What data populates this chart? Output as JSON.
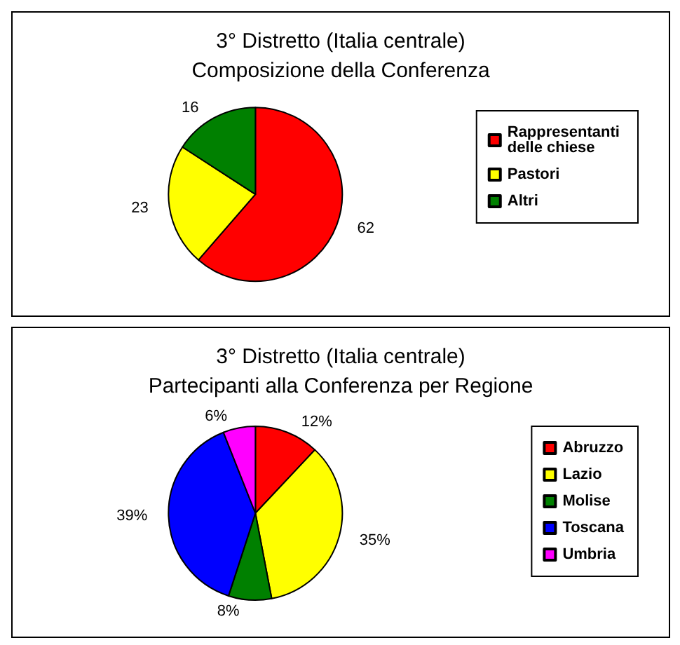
{
  "chart_data": [
    {
      "type": "pie",
      "title": "3° Distretto (Italia centrale)",
      "subtitle": "Composizione della Conferenza",
      "categories": [
        "Rappresentanti delle chiese",
        "Pastori",
        "Altri"
      ],
      "values": [
        62,
        23,
        16
      ],
      "colors": [
        "#ff0000",
        "#ffff00",
        "#008000"
      ],
      "data_labels": true,
      "legend": "right"
    },
    {
      "type": "pie",
      "title": "3° Distretto (Italia centrale)",
      "subtitle": "Partecipanti alla Conferenza per Regione",
      "categories": [
        "Abruzzo",
        "Lazio",
        "Molise",
        "Toscana",
        "Umbria"
      ],
      "values": [
        12,
        35,
        8,
        39,
        6
      ],
      "colors": [
        "#ff0000",
        "#ffff00",
        "#008000",
        "#0000ff",
        "#ff00ff"
      ],
      "value_labels": [
        "12%",
        "35%",
        "8%",
        "39%",
        "6%"
      ],
      "legend": "right"
    }
  ]
}
